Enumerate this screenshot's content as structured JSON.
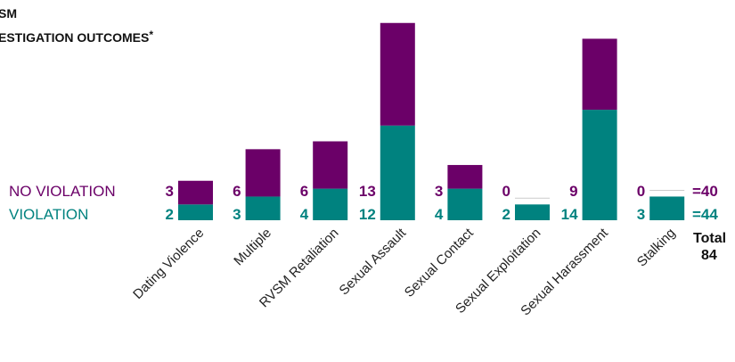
{
  "chart_data": {
    "type": "bar",
    "stacked": true,
    "title_line1": "SM",
    "title_line2": "ESTIGATION OUTCOMES",
    "title_mark": "*",
    "categories": [
      "Dating Violence",
      "Multiple",
      "RVSM Retaliation",
      "Sexual Assault",
      "Sexual Contact",
      "Sexual Exploitation",
      "Sexual Harassment",
      "Stalking"
    ],
    "series": [
      {
        "name": "VIOLATION",
        "values": [
          2,
          3,
          4,
          12,
          4,
          2,
          14,
          3
        ],
        "color": "#00827f"
      },
      {
        "name": "NO VIOLATION",
        "values": [
          3,
          6,
          6,
          13,
          3,
          0,
          9,
          0
        ],
        "color": "#6b0068"
      }
    ],
    "totals": {
      "no_violation": "=40",
      "violation": "=44",
      "label": "Total",
      "value": "84"
    }
  }
}
